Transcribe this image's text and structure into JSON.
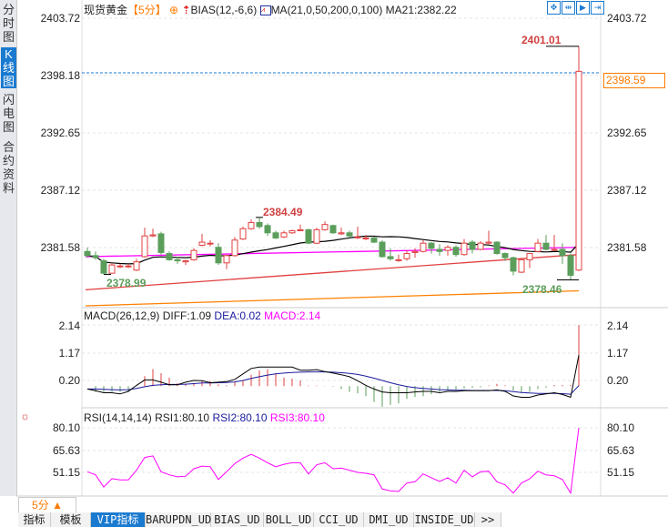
{
  "sidebar": {
    "items": [
      {
        "label": "分时图",
        "active": false
      },
      {
        "label": "K线图",
        "active": true
      },
      {
        "label": "闪电图",
        "active": false
      },
      {
        "label": "合约资料",
        "active": false
      }
    ]
  },
  "header": {
    "symbol": "现货黄金",
    "period": "【5分】",
    "bias_label": "BIAS(12,-6,6)",
    "ma_label": "MA(21,0,50,200,0,100)",
    "ma21_label": "MA21:2382.22"
  },
  "toolbar_icons": [
    "crosshair-icon",
    "range-icon",
    "play-range-icon",
    "goto-end-icon"
  ],
  "main_axis": {
    "ticks": [
      "2403.72",
      "2398.18",
      "2392.65",
      "2387.12",
      "2381.58"
    ],
    "current_price": "2398.59"
  },
  "annotations": {
    "high": "2401.01",
    "mid_high": "2384.49",
    "low_left": "2378.99",
    "low_right": "2378.46"
  },
  "colors": {
    "up": "#e04040",
    "down": "#5b9e5b",
    "ma21": "#000000",
    "ma50": "#ff00ff",
    "ma100": "#e04040",
    "ma200": "#ff8000",
    "accent": "#1a7ad0",
    "orange": "#ff7a00"
  },
  "chart_data": {
    "type": "candlestick",
    "price_range": [
      2376.0,
      2403.72
    ],
    "ohlc": [
      [
        2381.2,
        2381.6,
        2380.6,
        2380.8
      ],
      [
        2380.8,
        2381.2,
        2380.4,
        2380.6
      ],
      [
        2380.3,
        2380.5,
        2378.99,
        2379.1
      ],
      [
        2379.1,
        2380.1,
        2379.05,
        2379.9
      ],
      [
        2379.8,
        2380.0,
        2379.6,
        2379.8
      ],
      [
        2379.8,
        2380.0,
        2379.6,
        2379.8
      ],
      [
        2379.4,
        2380.5,
        2379.3,
        2380.2
      ],
      [
        2380.7,
        2383.5,
        2380.6,
        2382.7
      ],
      [
        2382.7,
        2383.4,
        2382.6,
        2382.8
      ],
      [
        2382.9,
        2383.1,
        2380.9,
        2381.1
      ],
      [
        2381.0,
        2381.2,
        2380.3,
        2380.4
      ],
      [
        2380.4,
        2380.7,
        2380.0,
        2380.3
      ],
      [
        2380.2,
        2380.4,
        2379.9,
        2380.3
      ],
      [
        2380.4,
        2381.5,
        2380.3,
        2381.3
      ],
      [
        2381.8,
        2382.9,
        2381.7,
        2382.1
      ],
      [
        2382.0,
        2382.3,
        2381.7,
        2382.0
      ],
      [
        2381.6,
        2382.0,
        2379.9,
        2380.1
      ],
      [
        2380.1,
        2380.9,
        2379.5,
        2380.8
      ],
      [
        2380.8,
        2382.6,
        2380.7,
        2382.3
      ],
      [
        2382.4,
        2383.6,
        2382.3,
        2383.4
      ],
      [
        2383.4,
        2384.3,
        2383.3,
        2384.0
      ],
      [
        2384.0,
        2384.49,
        2383.4,
        2383.6
      ],
      [
        2383.7,
        2383.9,
        2382.7,
        2383.0
      ],
      [
        2383.0,
        2383.2,
        2382.4,
        2382.5
      ],
      [
        2382.6,
        2383.2,
        2382.5,
        2383.0
      ],
      [
        2383.0,
        2383.3,
        2382.9,
        2383.2
      ],
      [
        2383.2,
        2383.8,
        2383.2,
        2383.3
      ],
      [
        2383.3,
        2383.4,
        2381.9,
        2382.0
      ],
      [
        2382.0,
        2383.5,
        2381.9,
        2383.3
      ],
      [
        2383.3,
        2384.1,
        2383.2,
        2383.8
      ],
      [
        2383.7,
        2383.8,
        2382.9,
        2383.0
      ],
      [
        2382.9,
        2383.5,
        2382.8,
        2383.0
      ],
      [
        2383.0,
        2383.2,
        2382.5,
        2382.7
      ],
      [
        2382.6,
        2383.6,
        2382.4,
        2382.6
      ],
      [
        2382.5,
        2382.8,
        2382.3,
        2382.5
      ],
      [
        2382.5,
        2382.6,
        2382.0,
        2382.1
      ],
      [
        2382.1,
        2382.3,
        2380.6,
        2380.7
      ],
      [
        2380.7,
        2381.5,
        2380.3,
        2380.5
      ],
      [
        2380.4,
        2380.9,
        2380.2,
        2380.4
      ],
      [
        2380.5,
        2381.3,
        2380.3,
        2381.0
      ],
      [
        2381.1,
        2381.5,
        2380.6,
        2381.2
      ],
      [
        2381.2,
        2382.3,
        2381.1,
        2382.0
      ],
      [
        2382.0,
        2382.1,
        2381.0,
        2381.5
      ],
      [
        2381.4,
        2381.9,
        2380.8,
        2381.2
      ],
      [
        2381.3,
        2381.8,
        2380.8,
        2381.6
      ],
      [
        2381.6,
        2381.8,
        2380.7,
        2380.9
      ],
      [
        2380.9,
        2382.4,
        2380.8,
        2382.0
      ],
      [
        2382.1,
        2382.3,
        2381.0,
        2381.4
      ],
      [
        2381.4,
        2382.2,
        2381.3,
        2382.0
      ],
      [
        2382.0,
        2383.2,
        2381.9,
        2382.1
      ],
      [
        2382.1,
        2382.2,
        2380.9,
        2381.0
      ],
      [
        2381.0,
        2381.1,
        2380.3,
        2380.6
      ],
      [
        2380.6,
        2380.7,
        2378.9,
        2379.3
      ],
      [
        2379.2,
        2380.5,
        2379.1,
        2380.4
      ],
      [
        2380.4,
        2381.0,
        2379.6,
        2381.0
      ],
      [
        2381.2,
        2382.4,
        2381.1,
        2382.0
      ],
      [
        2382.0,
        2382.8,
        2381.3,
        2381.4
      ],
      [
        2381.4,
        2382.8,
        2381.3,
        2381.4
      ],
      [
        2381.4,
        2382.0,
        2380.0,
        2380.8
      ],
      [
        2380.8,
        2381.0,
        2378.46,
        2378.9
      ],
      [
        2379.4,
        2401.01,
        2379.3,
        2398.59
      ]
    ],
    "ma_period": 21,
    "ma_trend_lines": [
      {
        "name": "MA50",
        "start": 2380.7,
        "end": 2381.6
      },
      {
        "name": "MA100",
        "start": 2377.5,
        "end": 2380.9
      },
      {
        "name": "MA200",
        "start": 2375.95,
        "end": 2377.4
      }
    ]
  },
  "macd": {
    "label": "MACD(26,12,9)",
    "diff_label": "DIFF:1.09",
    "dea_label": "DEA:0.02",
    "macd_label": "MACD:2.14",
    "ticks": [
      "2.14",
      "1.17",
      "0.20"
    ],
    "range": [
      -0.75,
      2.3
    ],
    "hist": [
      0,
      -0.2,
      -0.2,
      -0.2,
      -0.2,
      -0.2,
      0.03,
      0.35,
      0.6,
      0.45,
      0.3,
      0.1,
      0.08,
      0.1,
      0.18,
      0.18,
      0.06,
      0.03,
      0.15,
      0.2,
      0.4,
      0.55,
      0.6,
      0.45,
      0.3,
      0.27,
      0.2,
      0.02,
      0.02,
      0.01,
      -0.02,
      -0.1,
      -0.2,
      -0.25,
      -0.35,
      -0.55,
      -0.72,
      -0.65,
      -0.6,
      -0.45,
      -0.38,
      -0.35,
      -0.28,
      -0.2,
      -0.15,
      -0.12,
      -0.08,
      -0.06,
      -0.04,
      0.02,
      0.08,
      0.03,
      -0.15,
      -0.25,
      -0.2,
      -0.1,
      -0.05,
      0.04,
      0.04,
      0.04,
      2.14
    ],
    "diff": [
      -0.1,
      -0.16,
      -0.23,
      -0.23,
      -0.27,
      -0.18,
      0.03,
      0.22,
      0.22,
      0.14,
      0.05,
      0.05,
      0.14,
      0.2,
      0.19,
      0.12,
      0.14,
      0.16,
      0.24,
      0.43,
      0.62,
      0.67,
      0.67,
      0.67,
      0.67,
      0.67,
      0.56,
      0.56,
      0.58,
      0.51,
      0.46,
      0.4,
      0.33,
      0.19,
      0.03,
      -0.1,
      -0.2,
      -0.23,
      -0.23,
      -0.23,
      -0.2,
      -0.18,
      -0.18,
      -0.23,
      -0.18,
      -0.18,
      -0.16,
      -0.16,
      -0.16,
      -0.16,
      -0.13,
      -0.18,
      -0.34,
      -0.39,
      -0.39,
      -0.31,
      -0.27,
      -0.23,
      -0.29,
      -0.39,
      1.09
    ],
    "dea": [
      -0.1,
      -0.1,
      -0.11,
      -0.12,
      -0.13,
      -0.12,
      -0.08,
      -0.02,
      0.03,
      0.05,
      0.06,
      0.06,
      0.07,
      0.09,
      0.11,
      0.11,
      0.12,
      0.13,
      0.15,
      0.2,
      0.27,
      0.33,
      0.39,
      0.43,
      0.46,
      0.48,
      0.49,
      0.5,
      0.5,
      0.5,
      0.49,
      0.47,
      0.45,
      0.41,
      0.35,
      0.28,
      0.2,
      0.12,
      0.05,
      -0.01,
      -0.05,
      -0.08,
      -0.1,
      -0.12,
      -0.13,
      -0.14,
      -0.14,
      -0.15,
      -0.15,
      -0.15,
      -0.15,
      -0.16,
      -0.19,
      -0.22,
      -0.24,
      -0.25,
      -0.25,
      -0.25,
      -0.26,
      -0.28,
      0.02
    ]
  },
  "rsi": {
    "label": "RSI(14,14,14)",
    "rsi1_label": "RSI1:80.10",
    "rsi2_label": "RSI2:80.10",
    "rsi3_label": "RSI3:80.10",
    "ticks": [
      "80.10",
      "65.63",
      "51.15"
    ],
    "values": [
      51.5,
      49.5,
      41.6,
      47.0,
      46.2,
      46.2,
      52.5,
      60.8,
      61.8,
      51.5,
      49.5,
      48.2,
      48.6,
      53.5,
      55.2,
      54.8,
      46.5,
      51.5,
      56.8,
      60.4,
      62.8,
      60.4,
      57.4,
      54.8,
      56.4,
      57.4,
      57.4,
      50.1,
      56.0,
      57.4,
      53.5,
      53.9,
      52.5,
      51.1,
      50.5,
      49.5,
      40.3,
      39.1,
      38.7,
      44.2,
      45.0,
      50.1,
      47.6,
      45.2,
      47.6,
      44.2,
      52.5,
      48.2,
      51.5,
      51.9,
      45.0,
      43.0,
      37.7,
      44.2,
      46.9,
      51.9,
      49.5,
      48.9,
      46.5,
      37.7,
      80.1
    ]
  },
  "period_selector": {
    "label": "5分",
    "arrow": "▲"
  },
  "bottom_tabs": [
    {
      "label": "指标",
      "active": false
    },
    {
      "label": "模板",
      "active": false
    },
    {
      "label": "VIP指标",
      "active": true
    },
    {
      "label": "BARUPDN_UD",
      "active": false
    },
    {
      "label": "BIAS_UD",
      "active": false
    },
    {
      "label": "BOLL_UD",
      "active": false
    },
    {
      "label": "CCI_UD",
      "active": false
    },
    {
      "label": "DMI_UD",
      "active": false
    },
    {
      "label": "INSIDE_UD",
      "active": false
    },
    {
      "label": ">>",
      "active": false
    }
  ]
}
